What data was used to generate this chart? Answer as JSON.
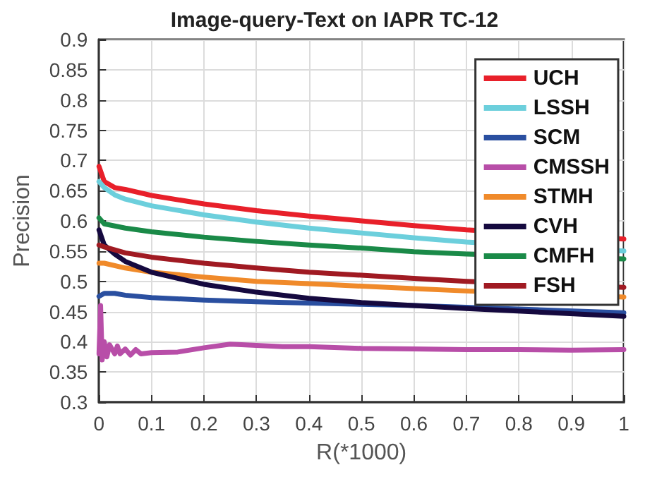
{
  "chart_data": {
    "type": "line",
    "title": "Image-query-Text on IAPR TC-12",
    "xlabel": "R(*1000)",
    "ylabel": "Precision",
    "xlim": [
      0,
      1
    ],
    "xticks": [
      0,
      0.1,
      0.2,
      0.3,
      0.4,
      0.5,
      0.6,
      0.7,
      0.8,
      0.9,
      1
    ],
    "ylim": [
      0.3,
      0.9
    ],
    "yticks": [
      0.3,
      0.35,
      0.4,
      0.45,
      0.5,
      0.55,
      0.6,
      0.65,
      0.7,
      0.75,
      0.8,
      0.85,
      0.9
    ],
    "grid": true,
    "legend": "top right",
    "marker": "none",
    "line_style": "solid",
    "series": [
      {
        "name": "UCH",
        "color": "#e8202a",
        "x": [
          0,
          0.01,
          0.03,
          0.05,
          0.1,
          0.2,
          0.3,
          0.4,
          0.5,
          0.6,
          0.7,
          1
        ],
        "values": [
          0.69,
          0.665,
          0.655,
          0.652,
          0.642,
          0.628,
          0.617,
          0.608,
          0.6,
          0.592,
          0.585,
          0.57
        ]
      },
      {
        "name": "LSSH",
        "color": "#6ccfdc",
        "x": [
          0,
          0.01,
          0.03,
          0.05,
          0.1,
          0.2,
          0.3,
          0.4,
          0.5,
          0.6,
          0.7,
          1
        ],
        "values": [
          0.665,
          0.655,
          0.643,
          0.636,
          0.625,
          0.61,
          0.598,
          0.588,
          0.58,
          0.572,
          0.565,
          0.55
        ]
      },
      {
        "name": "SCM",
        "color": "#2a4fa0",
        "x": [
          0,
          0.01,
          0.03,
          0.05,
          0.1,
          0.2,
          0.3,
          0.4,
          0.5,
          0.6,
          0.7,
          1
        ],
        "values": [
          0.475,
          0.48,
          0.48,
          0.477,
          0.473,
          0.469,
          0.466,
          0.464,
          0.462,
          0.46,
          0.457,
          0.448
        ]
      },
      {
        "name": "CMSSH",
        "color": "#b84ea8",
        "x": [
          0,
          0.003,
          0.006,
          0.01,
          0.015,
          0.02,
          0.03,
          0.035,
          0.04,
          0.05,
          0.06,
          0.07,
          0.08,
          0.1,
          0.15,
          0.2,
          0.25,
          0.3,
          0.35,
          0.4,
          0.5,
          0.6,
          0.7,
          0.8,
          0.9,
          1
        ],
        "values": [
          0.38,
          0.46,
          0.37,
          0.4,
          0.375,
          0.395,
          0.38,
          0.393,
          0.38,
          0.388,
          0.378,
          0.387,
          0.38,
          0.382,
          0.383,
          0.39,
          0.396,
          0.394,
          0.392,
          0.392,
          0.389,
          0.388,
          0.387,
          0.387,
          0.386,
          0.387
        ]
      },
      {
        "name": "STMH",
        "color": "#f08a2a",
        "x": [
          0,
          0.01,
          0.05,
          0.1,
          0.2,
          0.3,
          0.4,
          0.5,
          0.6,
          0.7,
          1
        ],
        "values": [
          0.53,
          0.53,
          0.522,
          0.515,
          0.507,
          0.5,
          0.496,
          0.492,
          0.488,
          0.484,
          0.474
        ]
      },
      {
        "name": "CVH",
        "color": "#15093f",
        "x": [
          0,
          0.01,
          0.03,
          0.05,
          0.1,
          0.2,
          0.3,
          0.4,
          0.5,
          0.6,
          0.7,
          1
        ],
        "values": [
          0.585,
          0.56,
          0.545,
          0.533,
          0.515,
          0.495,
          0.482,
          0.472,
          0.465,
          0.46,
          0.455,
          0.442
        ]
      },
      {
        "name": "CMFH",
        "color": "#1a8a48",
        "x": [
          0,
          0.01,
          0.05,
          0.1,
          0.2,
          0.3,
          0.4,
          0.5,
          0.6,
          0.7,
          1
        ],
        "values": [
          0.605,
          0.595,
          0.588,
          0.582,
          0.573,
          0.566,
          0.56,
          0.555,
          0.549,
          0.545,
          0.537
        ]
      },
      {
        "name": "FSH",
        "color": "#a01a22",
        "x": [
          0,
          0.01,
          0.05,
          0.1,
          0.2,
          0.3,
          0.4,
          0.5,
          0.6,
          0.7,
          1
        ],
        "values": [
          0.56,
          0.557,
          0.547,
          0.54,
          0.53,
          0.522,
          0.515,
          0.51,
          0.505,
          0.5,
          0.49
        ]
      }
    ]
  }
}
